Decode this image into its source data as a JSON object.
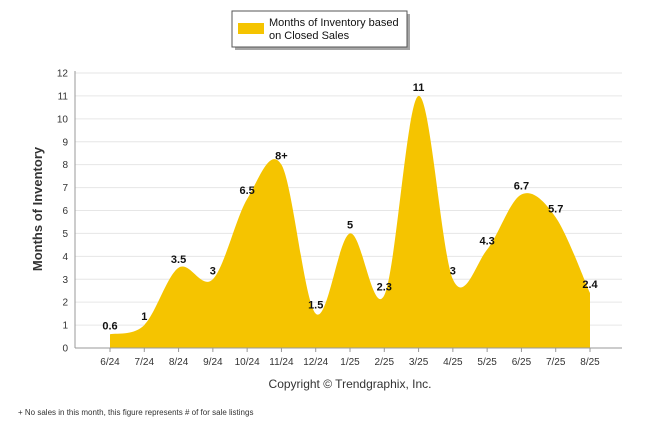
{
  "chart_data": {
    "type": "area",
    "categories": [
      "6/24",
      "7/24",
      "8/24",
      "9/24",
      "10/24",
      "11/24",
      "12/24",
      "1/25",
      "2/25",
      "3/25",
      "4/25",
      "5/25",
      "6/25",
      "7/25",
      "8/25"
    ],
    "series": [
      {
        "name": "Months of Inventory based on Closed Sales",
        "values": [
          0.6,
          1,
          3.5,
          3,
          6.5,
          8,
          1.5,
          5,
          2.3,
          11,
          3,
          4.3,
          6.7,
          5.7,
          2.4
        ],
        "labels": [
          "0.6",
          "1",
          "3.5",
          "3",
          "6.5",
          "8+",
          "1.5",
          "5",
          "2.3",
          "11",
          "3",
          "4.3",
          "6.7",
          "5.7",
          "2.4"
        ],
        "color": "#F5C400"
      }
    ],
    "ylabel": "Months of Inventory",
    "ylim": [
      0,
      12
    ],
    "yticks": [
      "0",
      "1",
      "2",
      "3",
      "4",
      "5",
      "6",
      "7",
      "8",
      "9",
      "10",
      "11",
      "12"
    ],
    "grid": true,
    "legend_position": "top-center"
  },
  "legend": {
    "line1": "Months of Inventory based",
    "line2": "on Closed Sales"
  },
  "copyright": "Copyright © Trendgraphix, Inc.",
  "footnote": "+  No sales in this month, this figure represents # of for sale listings"
}
